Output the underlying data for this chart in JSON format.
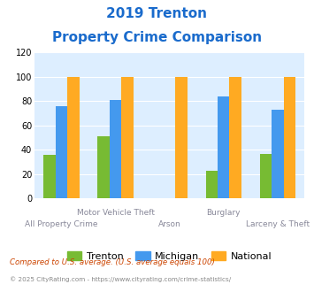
{
  "title_line1": "2019 Trenton",
  "title_line2": "Property Crime Comparison",
  "title_color": "#1a6bcc",
  "categories": [
    "All Property Crime",
    "Motor Vehicle Theft",
    "Arson",
    "Burglary",
    "Larceny & Theft"
  ],
  "top_labels": [
    "",
    "Motor Vehicle Theft",
    "",
    "Burglary",
    ""
  ],
  "bottom_labels": [
    "All Property Crime",
    "",
    "Arson",
    "",
    "Larceny & Theft"
  ],
  "trenton": [
    36,
    51,
    0,
    23,
    37
  ],
  "michigan": [
    76,
    81,
    0,
    84,
    73
  ],
  "national": [
    100,
    100,
    100,
    100,
    100
  ],
  "trenton_color": "#77bb33",
  "michigan_color": "#4499ee",
  "national_color": "#ffaa22",
  "ylim": [
    0,
    120
  ],
  "yticks": [
    0,
    20,
    40,
    60,
    80,
    100,
    120
  ],
  "plot_bg_color": "#ddeeff",
  "footnote1": "Compared to U.S. average. (U.S. average equals 100)",
  "footnote2": "© 2025 CityRating.com - https://www.cityrating.com/crime-statistics/",
  "footnote1_color": "#cc4400",
  "footnote2_color": "#888888",
  "bar_width": 0.22
}
